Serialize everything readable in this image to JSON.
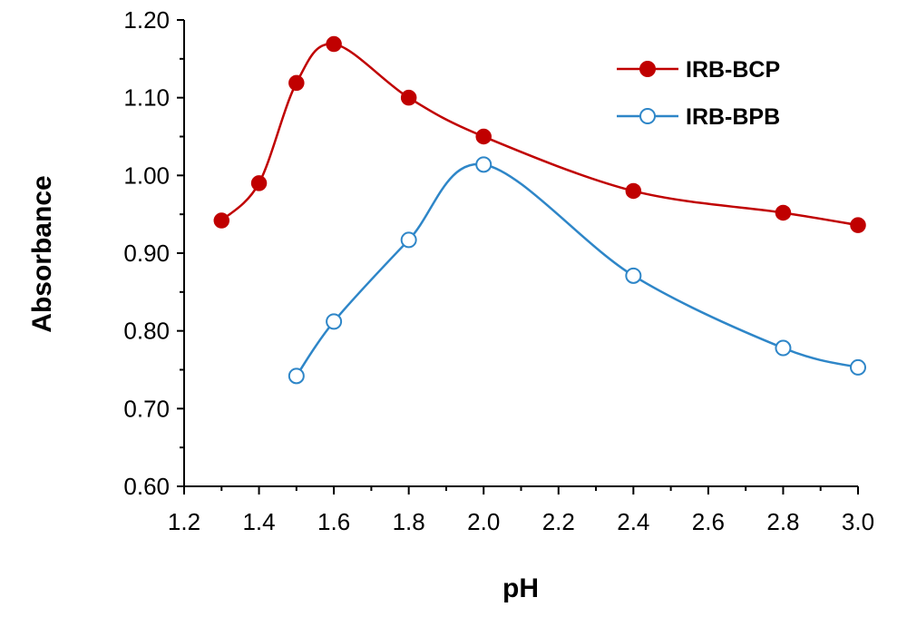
{
  "chart_data": {
    "type": "line",
    "xlabel": "pH",
    "ylabel": "Absorbance",
    "xlim": [
      1.2,
      3.0
    ],
    "ylim": [
      0.6,
      1.2
    ],
    "x_ticks": [
      "1.2",
      "1.4",
      "1.6",
      "1.8",
      "2.0",
      "2.2",
      "2.4",
      "2.6",
      "2.8",
      "3.0"
    ],
    "y_ticks": [
      "0.60",
      "0.70",
      "0.80",
      "0.90",
      "1.00",
      "1.10",
      "1.20"
    ],
    "grid": false,
    "legend_position": "top-right",
    "series": [
      {
        "name": "IRB-BCP",
        "color": "#C00000",
        "marker": "filled-circle",
        "x": [
          1.3,
          1.4,
          1.5,
          1.6,
          1.8,
          2.0,
          2.4,
          2.8,
          3.0
        ],
        "y": [
          0.942,
          0.99,
          1.119,
          1.169,
          1.1,
          1.05,
          0.98,
          0.952,
          0.936
        ]
      },
      {
        "name": "IRB-BPB",
        "color": "#2E86C8",
        "marker": "open-circle",
        "x": [
          1.5,
          1.6,
          1.8,
          2.0,
          2.4,
          2.8,
          3.0
        ],
        "y": [
          0.742,
          0.812,
          0.917,
          1.014,
          0.871,
          0.778,
          0.753
        ]
      }
    ]
  }
}
